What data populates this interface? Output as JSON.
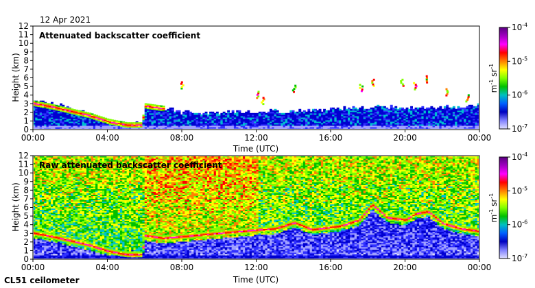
{
  "header": {
    "date": "12 Apr 2021",
    "instrument": "CL51 ceilometer"
  },
  "colorbar": {
    "unit_base": "m",
    "unit_exp1": "-1",
    "unit_mid": "sr",
    "unit_exp2": "-1",
    "ticks": [
      {
        "base": "10",
        "exp": "-4"
      },
      {
        "base": "10",
        "exp": "-5"
      },
      {
        "base": "10",
        "exp": "-6"
      },
      {
        "base": "10",
        "exp": "-7"
      }
    ],
    "colors": [
      "#5a0080",
      "#a000c0",
      "#ff00ff",
      "#ff0000",
      "#ff8000",
      "#ffff00",
      "#80ff00",
      "#00c000",
      "#00c0c0",
      "#0060ff",
      "#0000c0",
      "#8080ff",
      "#e0e0ff"
    ]
  },
  "chart_data": [
    {
      "type": "heatmap",
      "title": "Attenuated backscatter coefficient",
      "xlabel": "Time (UTC)",
      "ylabel": "Height (km)",
      "xticks": [
        "00:00",
        "04:00",
        "08:00",
        "12:00",
        "16:00",
        "20:00",
        "00:00"
      ],
      "yticks": [
        "0",
        "1",
        "2",
        "3",
        "4",
        "5",
        "6",
        "7",
        "8",
        "9",
        "10",
        "11",
        "12"
      ],
      "xlim_hours": [
        0,
        24
      ],
      "ylim_km": [
        0,
        12
      ],
      "colorscale": "log",
      "clim": [
        1e-07,
        0.0001
      ],
      "layers": {
        "boundary_layer_top_km": [
          [
            0,
            3.2
          ],
          [
            1,
            3.0
          ],
          [
            2,
            2.3
          ],
          [
            3,
            1.6
          ],
          [
            4,
            0.9
          ],
          [
            5,
            0.6
          ],
          [
            5.8,
            0.7
          ],
          [
            6,
            2.6
          ],
          [
            7,
            2.4
          ],
          [
            8,
            1.9
          ],
          [
            10,
            2.0
          ],
          [
            12,
            2.0
          ],
          [
            14,
            2.1
          ],
          [
            16,
            2.3
          ],
          [
            18,
            2.6
          ],
          [
            20,
            2.5
          ],
          [
            22,
            2.5
          ],
          [
            24,
            2.8
          ]
        ],
        "cloud_layer_km": [
          [
            0,
            3.0
          ],
          [
            1,
            2.6
          ],
          [
            2,
            2.1
          ],
          [
            3,
            1.6
          ],
          [
            4,
            0.9
          ],
          [
            5,
            0.5
          ],
          [
            5.8,
            0.5
          ],
          [
            6,
            2.7
          ],
          [
            7,
            2.4
          ]
        ],
        "elevated_echoes": [
          {
            "time_h": 8.0,
            "height_km": 5.1
          },
          {
            "time_h": 12.0,
            "height_km": 4.0
          },
          {
            "time_h": 12.3,
            "height_km": 3.3
          },
          {
            "time_h": 14.0,
            "height_km": 4.7
          },
          {
            "time_h": 17.6,
            "height_km": 4.8
          },
          {
            "time_h": 18.2,
            "height_km": 5.4
          },
          {
            "time_h": 19.8,
            "height_km": 5.4
          },
          {
            "time_h": 20.5,
            "height_km": 5.0
          },
          {
            "time_h": 21.1,
            "height_km": 5.8
          },
          {
            "time_h": 22.2,
            "height_km": 4.3
          },
          {
            "time_h": 23.3,
            "height_km": 3.6
          }
        ]
      }
    },
    {
      "type": "heatmap",
      "title": "Raw attenuated backscatter coefficient",
      "xlabel": "Time (UTC)",
      "ylabel": "Height (km)",
      "xticks": [
        "00:00",
        "04:00",
        "08:00",
        "12:00",
        "16:00",
        "20:00",
        "00:00"
      ],
      "yticks": [
        "0",
        "1",
        "2",
        "3",
        "4",
        "5",
        "6",
        "7",
        "8",
        "9",
        "10",
        "11",
        "12"
      ],
      "xlim_hours": [
        0,
        24
      ],
      "ylim_km": [
        0,
        12
      ],
      "colorscale": "log",
      "clim": [
        1e-07,
        0.0001
      ],
      "layers": {
        "cloud_layer_km": [
          [
            0,
            3.0
          ],
          [
            1,
            2.6
          ],
          [
            2,
            2.1
          ],
          [
            3,
            1.6
          ],
          [
            4,
            0.9
          ],
          [
            5,
            0.5
          ],
          [
            5.8,
            0.5
          ],
          [
            6,
            2.7
          ],
          [
            7,
            2.4
          ],
          [
            12.2,
            3.4
          ],
          [
            13,
            3.5
          ],
          [
            14,
            4.2
          ],
          [
            15,
            3.4
          ],
          [
            16.5,
            3.8
          ],
          [
            17.5,
            4.5
          ],
          [
            18.2,
            6.3
          ],
          [
            19,
            4.8
          ],
          [
            20,
            4.5
          ],
          [
            20.5,
            5.2
          ],
          [
            21.2,
            5.5
          ],
          [
            22,
            4.1
          ],
          [
            23,
            3.5
          ],
          [
            24,
            3.2
          ]
        ]
      }
    }
  ]
}
